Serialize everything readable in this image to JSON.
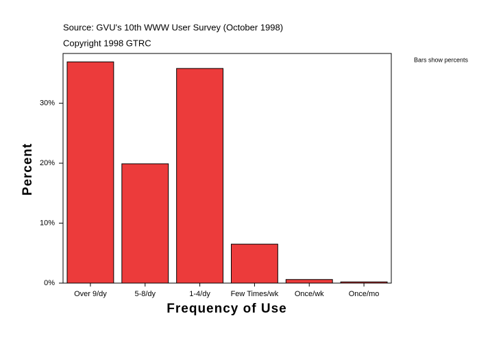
{
  "chart_data": {
    "type": "bar",
    "subtitle": "Source: GVU's 10th WWW User Survey (October 1998)",
    "copyright": "Copyright 1998 GTRC",
    "note": "Bars show percents",
    "x_label": "Frequency of Use",
    "y_label": "Percent",
    "categories": [
      "Over 9/dy",
      "5-8/dy",
      "1-4/dy",
      "Few Times/wk",
      "Once/wk",
      "Once/mo"
    ],
    "values": [
      36.9,
      19.9,
      35.8,
      6.5,
      0.6,
      0.2
    ],
    "color": "#ec3b3b",
    "ylim": [
      0,
      38.3
    ],
    "yticks": [
      {
        "value": 0,
        "label": "0%"
      },
      {
        "value": 10,
        "label": "10%"
      },
      {
        "value": 20,
        "label": "20%"
      },
      {
        "value": 30,
        "label": "30%"
      }
    ]
  }
}
